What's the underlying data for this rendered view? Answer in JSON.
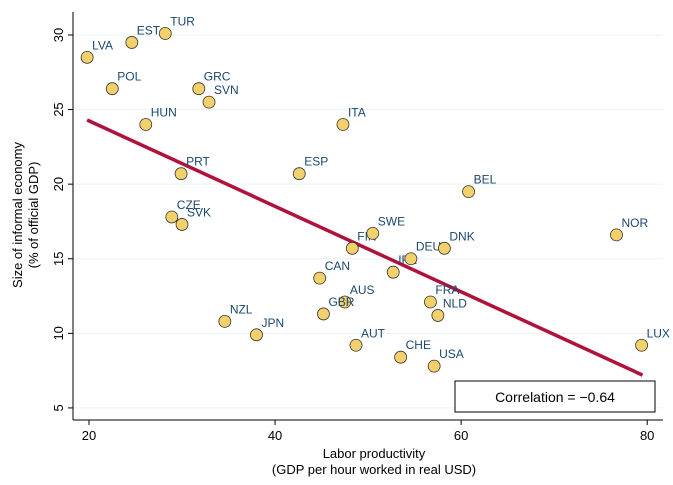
{
  "chart_data": {
    "type": "scatter",
    "ylabel": [
      "Size of informal economy",
      "(% of official GDP)"
    ],
    "xlabel": [
      "Labor productivity",
      "(GDP per hour worked in real USD)"
    ],
    "labels": [
      "LVA",
      "EST",
      "TUR",
      "POL",
      "GRC",
      "SVN",
      "HUN",
      "ITA",
      "PRT",
      "ESP",
      "BEL",
      "CZE",
      "SVK",
      "FIN",
      "SWE",
      "IRL",
      "DEU",
      "DNK",
      "NOR",
      "CAN",
      "AUS",
      "GBR",
      "FRA",
      "NLD",
      "NZL",
      "JPN",
      "AUT",
      "CHE",
      "USA",
      "LUX"
    ],
    "x": [
      19.8,
      24.6,
      28.2,
      22.5,
      31.8,
      32.9,
      26.1,
      47.3,
      29.9,
      42.6,
      60.8,
      28.9,
      30.0,
      48.3,
      50.5,
      52.7,
      54.6,
      58.2,
      76.7,
      44.8,
      47.5,
      45.2,
      56.7,
      57.5,
      34.6,
      38.0,
      48.7,
      53.5,
      57.1,
      79.4
    ],
    "values": [
      28.5,
      29.5,
      30.1,
      26.4,
      26.4,
      25.5,
      24.0,
      24.0,
      20.7,
      20.7,
      19.5,
      17.8,
      17.3,
      15.7,
      16.7,
      14.1,
      15.0,
      15.7,
      16.6,
      13.7,
      12.1,
      11.3,
      12.1,
      11.2,
      10.8,
      9.9,
      9.2,
      8.4,
      7.8,
      9.2
    ],
    "color": "#f2d06b",
    "fit": {
      "color": "#b0123b",
      "x": [
        19.8,
        79.5
      ],
      "y": [
        24.3,
        7.2
      ]
    },
    "annotation": "Correlation = −0.64",
    "xlim": [
      18.28,
      81.7
    ],
    "ylim": [
      4.19,
      31.54
    ],
    "xticks": [
      20,
      40,
      60,
      80
    ],
    "yticks": [
      5,
      10,
      15,
      20,
      25,
      30
    ],
    "grid": true
  }
}
